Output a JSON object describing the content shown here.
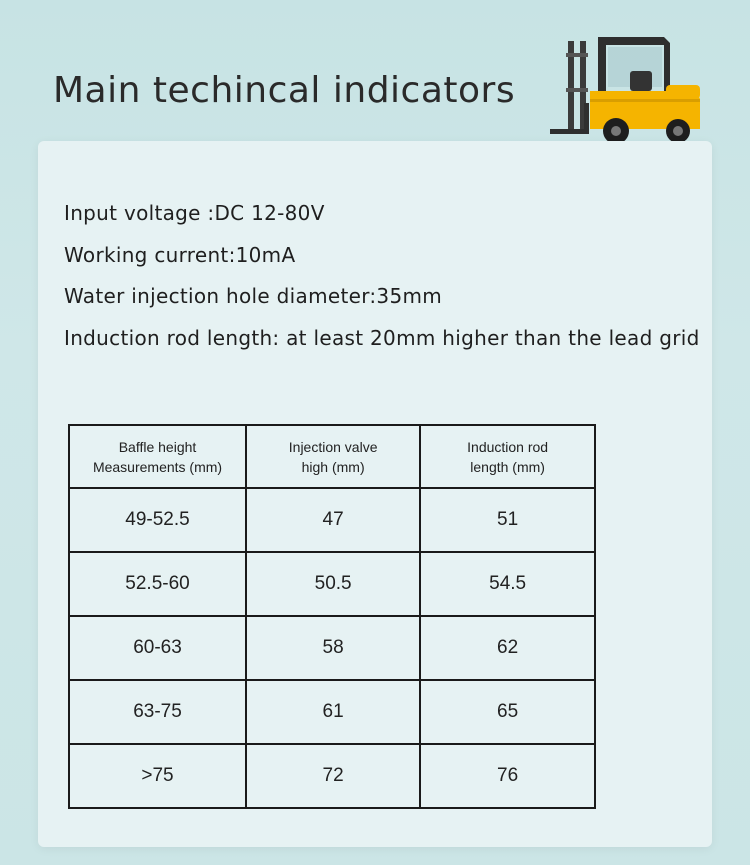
{
  "page": {
    "title": "Main techincal indicators"
  },
  "specs": [
    "Input voltage :DC 12-80V",
    "Working current:10mA",
    "Water injection hole diameter:35mm",
    "Induction rod length: at least 20mm higher than the lead grid"
  ],
  "table": {
    "headers": [
      [
        "Baffle height",
        "Measurements (mm)"
      ],
      [
        "Injection valve",
        "high (mm)"
      ],
      [
        "Induction rod",
        "length  (mm)"
      ]
    ],
    "rows": [
      [
        "49-52.5",
        "47",
        "51"
      ],
      [
        "52.5-60",
        "50.5",
        "54.5"
      ],
      [
        "60-63",
        "58",
        "62"
      ],
      [
        "63-75",
        "61",
        "65"
      ],
      [
        ">75",
        "72",
        "76"
      ]
    ]
  },
  "colors": {
    "background": "#c9e4e5",
    "card": "#e6f2f3",
    "forklift_body": "#f5b400"
  },
  "icons": {
    "illustration": "forklift-image"
  }
}
